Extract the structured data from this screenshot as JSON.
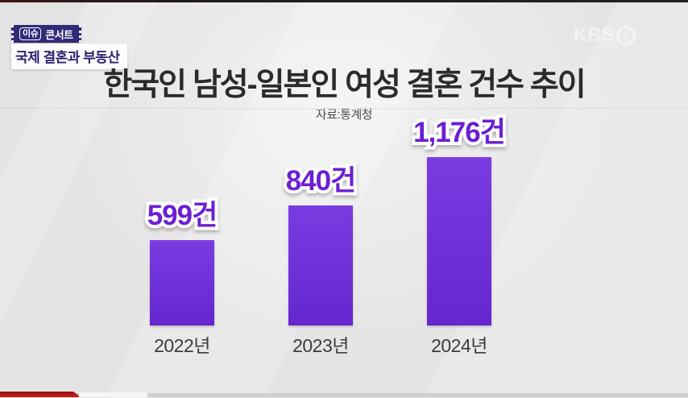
{
  "broadcast": {
    "badge": {
      "tag": "이슈",
      "label": "콘서트"
    },
    "subtitle": "국제 결혼과 부동산",
    "watermark": {
      "text": "KBS",
      "channel": "2"
    }
  },
  "chart_data": {
    "type": "bar",
    "title": "한국인 남성-일본인 여성 결혼 건수 추이",
    "source": "자료:통계청",
    "categories": [
      "2022년",
      "2023년",
      "2024년"
    ],
    "values": [
      599,
      840,
      1176
    ],
    "value_labels": [
      "599건",
      "840건",
      "1,176건"
    ],
    "ylim": [
      0,
      1250
    ],
    "grid": false,
    "legend": "none",
    "bar_color": "#6e2fd6",
    "value_label_color": "#6c1fd2"
  }
}
